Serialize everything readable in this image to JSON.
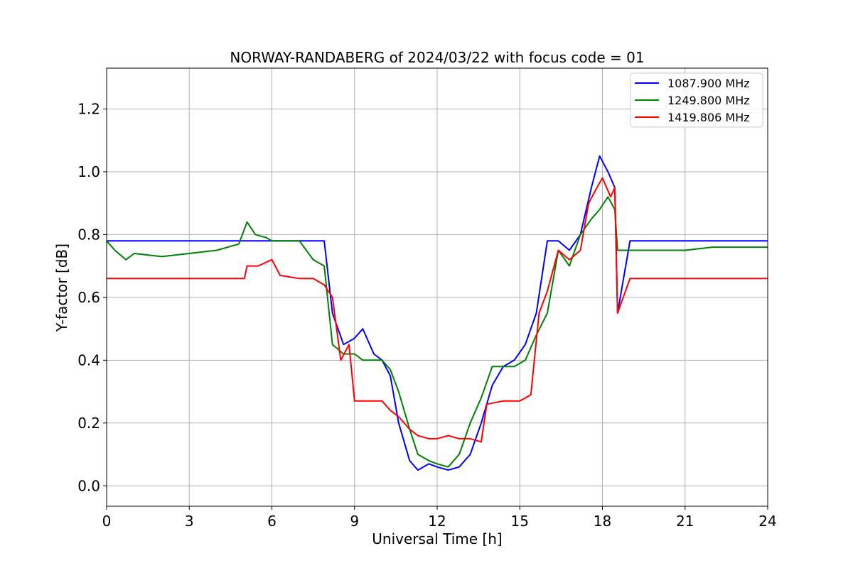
{
  "chart_data": {
    "type": "line",
    "title": "NORWAY-RANDABERG of 2024/03/22 with focus code = 01",
    "xlabel": "Universal Time [h]",
    "ylabel": "Y-factor [dB]",
    "xlim": [
      0,
      24
    ],
    "ylim": [
      -0.065,
      1.33
    ],
    "x_ticks": [
      0,
      3,
      6,
      9,
      12,
      15,
      18,
      21,
      24
    ],
    "x_tick_labels": [
      "0",
      "3",
      "6",
      "9",
      "12",
      "15",
      "18",
      "21",
      "24"
    ],
    "y_ticks": [
      0.0,
      0.2,
      0.4,
      0.6,
      0.8,
      1.0,
      1.2
    ],
    "y_tick_labels": [
      "0.0",
      "0.2",
      "0.4",
      "0.6",
      "0.8",
      "1.0",
      "1.2"
    ],
    "grid": true,
    "legend_position": "top-right",
    "series": [
      {
        "name": "1087.900 MHz",
        "color": "#0000ff",
        "x": [
          0.0,
          0.5,
          1.0,
          2.0,
          3.0,
          4.0,
          5.0,
          5.5,
          6.0,
          7.0,
          7.5,
          7.9,
          8.2,
          8.6,
          9.0,
          9.3,
          9.7,
          10.0,
          10.3,
          10.6,
          11.0,
          11.3,
          11.7,
          12.0,
          12.4,
          12.8,
          13.2,
          13.6,
          14.0,
          14.4,
          14.8,
          15.2,
          15.6,
          16.0,
          16.4,
          16.8,
          17.2,
          17.6,
          17.9,
          18.2,
          18.45,
          18.55,
          19.0,
          20.0,
          21.0,
          22.0,
          23.0,
          24.0
        ],
        "y": [
          0.78,
          0.78,
          0.78,
          0.78,
          0.78,
          0.78,
          0.78,
          0.78,
          0.78,
          0.78,
          0.78,
          0.78,
          0.55,
          0.45,
          0.47,
          0.5,
          0.42,
          0.4,
          0.35,
          0.2,
          0.08,
          0.05,
          0.07,
          0.06,
          0.05,
          0.06,
          0.1,
          0.2,
          0.32,
          0.38,
          0.4,
          0.45,
          0.55,
          0.78,
          0.78,
          0.75,
          0.8,
          0.95,
          1.05,
          1.0,
          0.95,
          0.55,
          0.78,
          0.78,
          0.78,
          0.78,
          0.78,
          0.78
        ]
      },
      {
        "name": "1249.800 MHz",
        "color": "#008000",
        "x": [
          0.0,
          0.3,
          0.7,
          1.0,
          2.0,
          3.0,
          4.0,
          4.8,
          5.1,
          5.4,
          5.8,
          6.0,
          7.0,
          7.5,
          7.9,
          8.2,
          8.6,
          9.0,
          9.3,
          9.7,
          10.0,
          10.3,
          10.6,
          11.0,
          11.3,
          11.7,
          12.0,
          12.4,
          12.8,
          13.2,
          13.6,
          14.0,
          14.4,
          14.8,
          15.2,
          15.6,
          16.0,
          16.4,
          16.8,
          17.2,
          17.6,
          17.9,
          18.2,
          18.45,
          18.55,
          19.0,
          20.0,
          21.0,
          22.0,
          23.0,
          24.0
        ],
        "y": [
          0.78,
          0.75,
          0.72,
          0.74,
          0.73,
          0.74,
          0.75,
          0.77,
          0.84,
          0.8,
          0.79,
          0.78,
          0.78,
          0.72,
          0.7,
          0.45,
          0.42,
          0.42,
          0.4,
          0.4,
          0.4,
          0.37,
          0.3,
          0.18,
          0.1,
          0.08,
          0.07,
          0.06,
          0.1,
          0.2,
          0.28,
          0.38,
          0.38,
          0.38,
          0.4,
          0.48,
          0.55,
          0.75,
          0.7,
          0.8,
          0.85,
          0.88,
          0.92,
          0.88,
          0.75,
          0.75,
          0.75,
          0.75,
          0.76,
          0.76,
          0.76
        ]
      },
      {
        "name": "1419.806 MHz",
        "color": "#ff0000",
        "x": [
          0.0,
          1.0,
          2.0,
          3.0,
          4.0,
          5.0,
          5.1,
          5.5,
          6.0,
          6.3,
          7.0,
          7.5,
          7.9,
          8.2,
          8.5,
          8.8,
          9.0,
          9.5,
          10.0,
          10.3,
          10.6,
          11.0,
          11.3,
          11.7,
          12.0,
          12.4,
          12.8,
          13.2,
          13.6,
          13.8,
          14.4,
          15.0,
          15.4,
          15.7,
          16.0,
          16.4,
          16.8,
          17.2,
          17.5,
          17.8,
          18.0,
          18.3,
          18.45,
          18.55,
          19.0,
          20.0,
          21.0,
          22.0,
          23.0,
          24.0
        ],
        "y": [
          0.66,
          0.66,
          0.66,
          0.66,
          0.66,
          0.66,
          0.7,
          0.7,
          0.72,
          0.67,
          0.66,
          0.66,
          0.64,
          0.6,
          0.4,
          0.45,
          0.27,
          0.27,
          0.27,
          0.24,
          0.22,
          0.18,
          0.16,
          0.15,
          0.15,
          0.16,
          0.15,
          0.15,
          0.14,
          0.26,
          0.27,
          0.27,
          0.29,
          0.55,
          0.62,
          0.75,
          0.72,
          0.75,
          0.9,
          0.95,
          0.98,
          0.92,
          0.95,
          0.55,
          0.66,
          0.66,
          0.66,
          0.66,
          0.66,
          0.66
        ]
      }
    ]
  }
}
